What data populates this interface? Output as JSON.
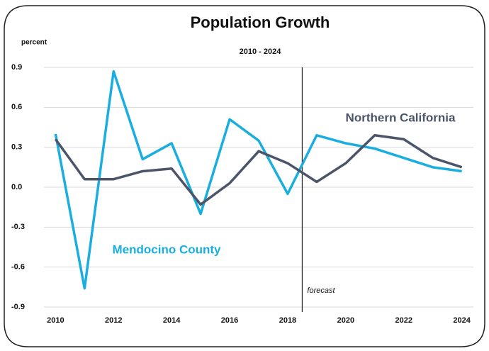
{
  "chart_data": {
    "type": "line",
    "title": "Population Growth",
    "subtitle": "2010 - 2024",
    "y_label": "percent",
    "x": [
      2010,
      2011,
      2012,
      2013,
      2014,
      2015,
      2016,
      2017,
      2018,
      2019,
      2020,
      2021,
      2022,
      2023,
      2024
    ],
    "series": [
      {
        "name": "Mendocino County",
        "color": "#1aaee0",
        "values": [
          0.4,
          -0.76,
          0.87,
          0.21,
          0.33,
          -0.2,
          0.51,
          0.35,
          -0.05,
          0.39,
          0.33,
          0.29,
          0.22,
          0.15,
          0.12
        ]
      },
      {
        "name": "Northern California",
        "color": "#4b5468",
        "values": [
          0.36,
          0.06,
          0.06,
          0.12,
          0.14,
          -0.13,
          0.03,
          0.27,
          0.18,
          0.04,
          0.18,
          0.39,
          0.36,
          0.22,
          0.15
        ]
      }
    ],
    "xlim": [
      2009.6,
      2024.4
    ],
    "xticks": [
      2010,
      2012,
      2014,
      2016,
      2018,
      2020,
      2022,
      2024
    ],
    "ylim": [
      -0.9,
      0.9
    ],
    "yticks": [
      0.9,
      0.6,
      0.3,
      {
        "value": 0,
        "label": "0.0"
      },
      -0.3,
      -0.6,
      -0.9
    ],
    "grid": true,
    "annotations": [
      {
        "text": "forecast",
        "x": 2018.5
      }
    ]
  }
}
